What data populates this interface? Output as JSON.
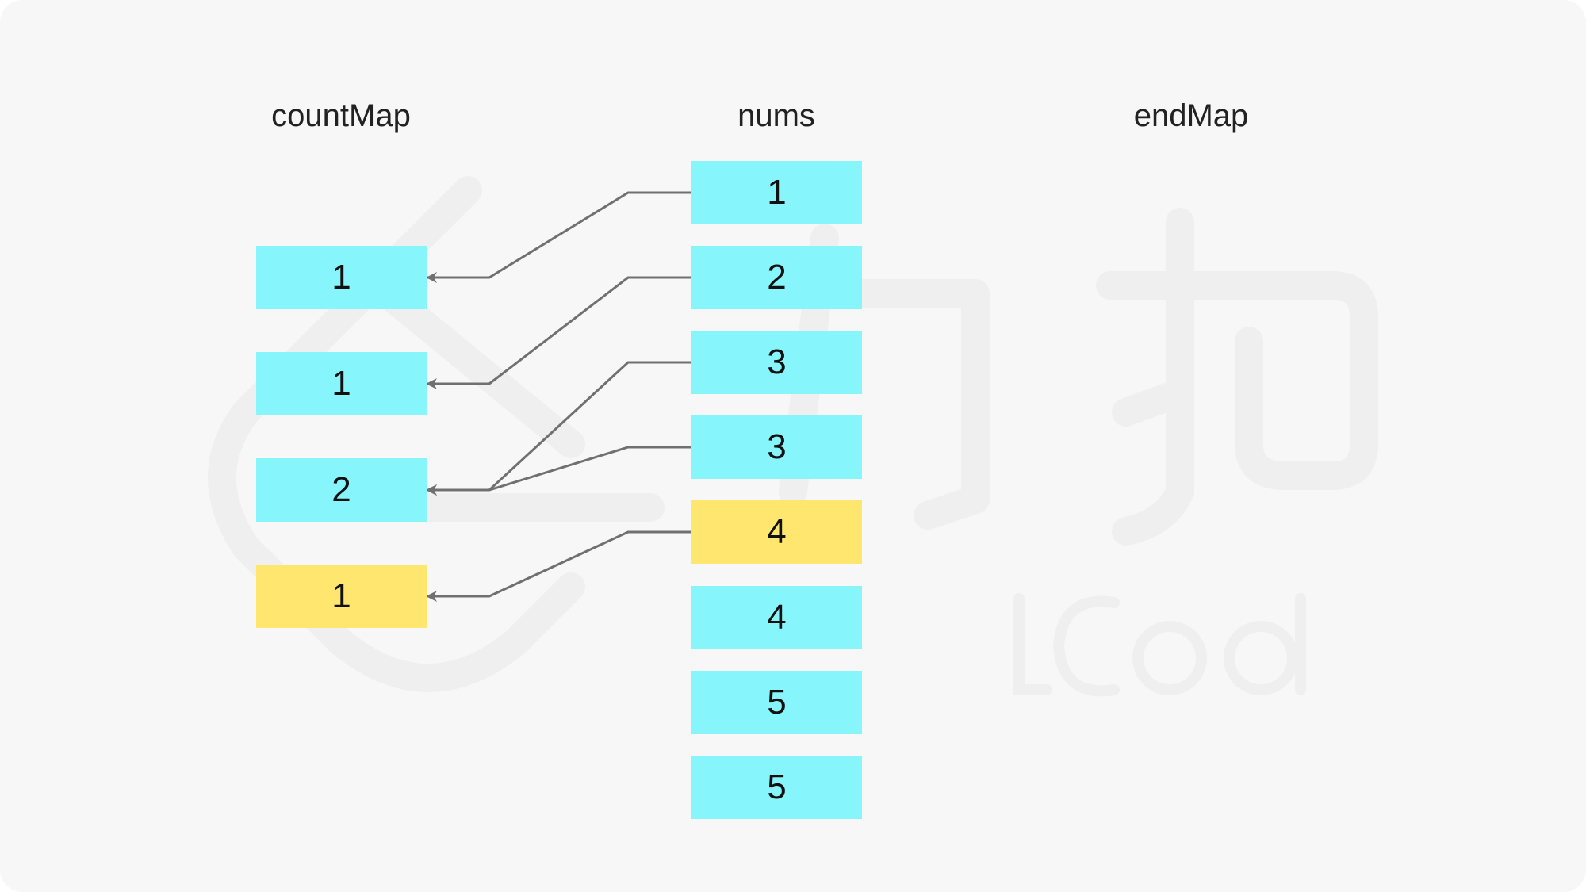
{
  "labels": {
    "countMap": "countMap",
    "nums": "nums",
    "endMap": "endMap"
  },
  "colors": {
    "default": "#87F6FC",
    "highlight": "#FFE66E",
    "line": "#707070",
    "background": "#F7F7F7"
  },
  "countMap": [
    {
      "value": "1",
      "highlight": false
    },
    {
      "value": "1",
      "highlight": false
    },
    {
      "value": "2",
      "highlight": false
    },
    {
      "value": "1",
      "highlight": true
    }
  ],
  "nums": [
    {
      "value": "1",
      "highlight": false
    },
    {
      "value": "2",
      "highlight": false
    },
    {
      "value": "3",
      "highlight": false
    },
    {
      "value": "3",
      "highlight": false
    },
    {
      "value": "4",
      "highlight": true
    },
    {
      "value": "4",
      "highlight": false
    },
    {
      "value": "5",
      "highlight": false
    },
    {
      "value": "5",
      "highlight": false
    }
  ],
  "edges": [
    [
      0,
      0
    ],
    [
      1,
      1
    ],
    [
      2,
      2
    ],
    [
      3,
      2
    ],
    [
      4,
      3
    ]
  ],
  "watermark": "LeetCode 力扣"
}
